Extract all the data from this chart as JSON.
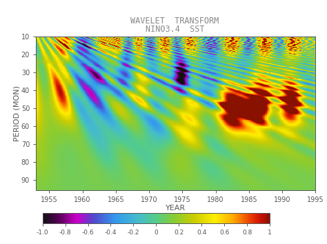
{
  "title_line1": "WAVELET  TRANSFORM",
  "title_line2": "NINO3.4  SST",
  "xlabel": "YEAR",
  "ylabel": "PERIOD (MON)",
  "year_start": 1952.5,
  "year_end": 1995,
  "period_min": 10,
  "period_max": 96,
  "xticks": [
    1955,
    1960,
    1965,
    1970,
    1975,
    1980,
    1985,
    1990,
    1995
  ],
  "yticks": [
    10,
    20,
    30,
    40,
    50,
    60,
    70,
    80,
    90
  ],
  "colorbar_ticks": [
    -1.0,
    -0.8,
    -0.6,
    -0.4,
    -0.2,
    0,
    0.2,
    0.4,
    0.6,
    0.8,
    1
  ],
  "vmin": -1.0,
  "vmax": 1.0,
  "background_color": "#ffffff",
  "title_color": "#888888",
  "label_color": "#555555",
  "cmap_colors": [
    [
      0.0,
      "#111111"
    ],
    [
      0.07,
      "#550055"
    ],
    [
      0.15,
      "#cc00cc"
    ],
    [
      0.22,
      "#5544cc"
    ],
    [
      0.32,
      "#3399ee"
    ],
    [
      0.42,
      "#44bbcc"
    ],
    [
      0.5,
      "#55cc88"
    ],
    [
      0.58,
      "#88cc33"
    ],
    [
      0.67,
      "#cccc00"
    ],
    [
      0.76,
      "#ffee00"
    ],
    [
      0.84,
      "#ffaa00"
    ],
    [
      0.91,
      "#ee4400"
    ],
    [
      0.96,
      "#cc1100"
    ],
    [
      1.0,
      "#881100"
    ]
  ]
}
